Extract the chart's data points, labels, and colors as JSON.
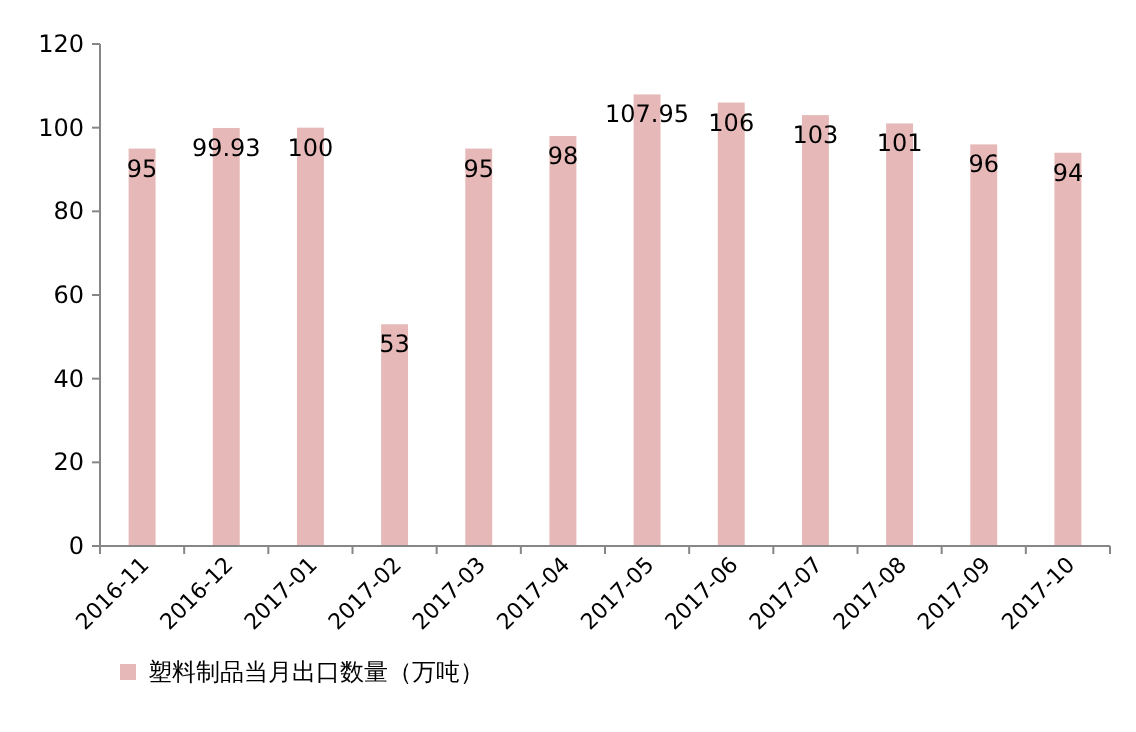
{
  "chart_data": {
    "type": "bar",
    "categories": [
      "2016-11",
      "2016-12",
      "2017-01",
      "2017-02",
      "2017-03",
      "2017-04",
      "2017-05",
      "2017-06",
      "2017-07",
      "2017-08",
      "2017-09",
      "2017-10"
    ],
    "series": [
      {
        "name": "塑料制品当月出口数量（万吨）",
        "color": "#e6b8b7",
        "values": [
          95,
          99.93,
          100,
          53,
          95,
          98,
          107.95,
          106,
          103,
          101,
          96,
          94
        ]
      }
    ],
    "ylim": [
      0,
      120
    ],
    "yticks": [
      0,
      20,
      40,
      60,
      80,
      100,
      120
    ],
    "data_labels": true,
    "legend": "bottom",
    "grid": false
  }
}
